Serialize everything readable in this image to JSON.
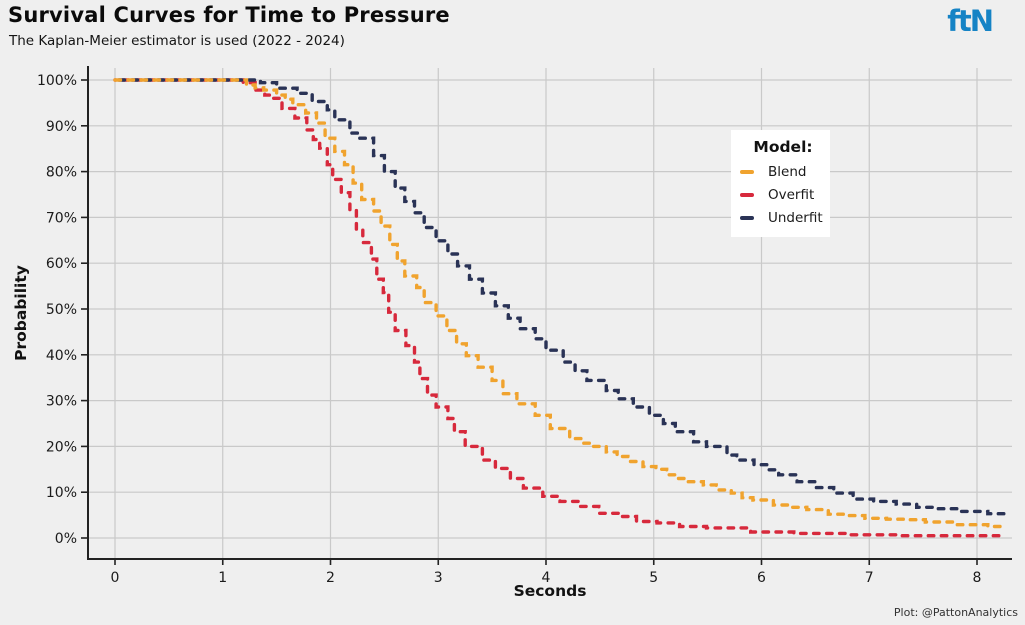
{
  "header": {
    "title": "Survival Curves for Time to Pressure",
    "subtitle": "The Kaplan-Meier estimator is used (2022 - 2024)",
    "logo": "ftN"
  },
  "caption": "Plot: @PattonAnalytics",
  "colors": {
    "background": "#efefef",
    "grid": "#c9c9c9",
    "axis": "#222222",
    "tick_label": "#1b1b1b",
    "legend_background": "#ffffff",
    "logo_blue": "#1583c5"
  },
  "chart_data": {
    "type": "line",
    "subtype": "kaplan-meier-step",
    "title": "Survival Curves for Time to Pressure",
    "subtitle": "The Kaplan-Meier estimator is used (2022 - 2024)",
    "xlabel": "Seconds",
    "ylabel": "Probability",
    "xlim": [
      -0.25,
      8.3
    ],
    "ylim": [
      0,
      100
    ],
    "grid": true,
    "dashed": true,
    "xticks": [
      0,
      1,
      2,
      3,
      4,
      5,
      6,
      7,
      8
    ],
    "yticks": [
      0,
      10,
      20,
      30,
      40,
      50,
      60,
      70,
      80,
      90,
      100
    ],
    "ytick_format": "percent",
    "legend": {
      "title": "Model:",
      "position": "inside-upper-right"
    },
    "series": [
      {
        "name": "Blend",
        "color": "#f0a32e",
        "points": [
          [
            0,
            100
          ],
          [
            1.22,
            98.9
          ],
          [
            1.3,
            98.3
          ],
          [
            1.38,
            97.8
          ],
          [
            1.5,
            96.7
          ],
          [
            1.58,
            95.8
          ],
          [
            1.65,
            94.6
          ],
          [
            1.77,
            92.8
          ],
          [
            1.87,
            90.6
          ],
          [
            1.95,
            87.3
          ],
          [
            2.04,
            84.4
          ],
          [
            2.13,
            81.5
          ],
          [
            2.21,
            77.5
          ],
          [
            2.29,
            73.9
          ],
          [
            2.4,
            71.4
          ],
          [
            2.47,
            68.1
          ],
          [
            2.55,
            64.1
          ],
          [
            2.62,
            60.5
          ],
          [
            2.69,
            57.2
          ],
          [
            2.8,
            54.7
          ],
          [
            2.87,
            51.4
          ],
          [
            2.98,
            48.5
          ],
          [
            3.08,
            45.3
          ],
          [
            3.17,
            42.4
          ],
          [
            3.26,
            39.8
          ],
          [
            3.37,
            37.3
          ],
          [
            3.5,
            34.4
          ],
          [
            3.6,
            31.5
          ],
          [
            3.73,
            29.3
          ],
          [
            3.9,
            26.8
          ],
          [
            4.04,
            23.9
          ],
          [
            4.22,
            21.7
          ],
          [
            4.35,
            20.7
          ],
          [
            4.44,
            20
          ],
          [
            4.56,
            18.8
          ],
          [
            4.66,
            17.8
          ],
          [
            4.76,
            16.7
          ],
          [
            4.9,
            15.6
          ],
          [
            5.02,
            15
          ],
          [
            5.12,
            13.8
          ],
          [
            5.21,
            13
          ],
          [
            5.32,
            12.3
          ],
          [
            5.46,
            11.6
          ],
          [
            5.58,
            10.5
          ],
          [
            5.72,
            9.8
          ],
          [
            5.82,
            8.8
          ],
          [
            5.92,
            8.3
          ],
          [
            6.11,
            7.2
          ],
          [
            6.28,
            6.7
          ],
          [
            6.42,
            6.2
          ],
          [
            6.62,
            5.2
          ],
          [
            6.76,
            4.9
          ],
          [
            6.96,
            4.3
          ],
          [
            7.16,
            4.1
          ],
          [
            7.32,
            4.0
          ],
          [
            7.52,
            3.5
          ],
          [
            7.8,
            2.9
          ],
          [
            8.1,
            2.5
          ],
          [
            8.25,
            2.5
          ]
        ]
      },
      {
        "name": "Overfit",
        "color": "#d7293c",
        "points": [
          [
            0,
            100
          ],
          [
            1.19,
            99.4
          ],
          [
            1.3,
            97.8
          ],
          [
            1.39,
            96.7
          ],
          [
            1.45,
            96
          ],
          [
            1.55,
            93.8
          ],
          [
            1.67,
            91.7
          ],
          [
            1.78,
            89.1
          ],
          [
            1.84,
            87
          ],
          [
            1.9,
            85.1
          ],
          [
            1.97,
            81.5
          ],
          [
            2.02,
            78.3
          ],
          [
            2.1,
            75.4
          ],
          [
            2.18,
            71.7
          ],
          [
            2.24,
            67.4
          ],
          [
            2.3,
            64.5
          ],
          [
            2.38,
            60.9
          ],
          [
            2.43,
            56.5
          ],
          [
            2.49,
            53.6
          ],
          [
            2.54,
            49.3
          ],
          [
            2.6,
            45.3
          ],
          [
            2.7,
            42
          ],
          [
            2.78,
            38.4
          ],
          [
            2.83,
            34.8
          ],
          [
            2.9,
            31.2
          ],
          [
            2.98,
            28.6
          ],
          [
            3.09,
            26.1
          ],
          [
            3.15,
            23.2
          ],
          [
            3.25,
            20
          ],
          [
            3.41,
            17
          ],
          [
            3.53,
            15.2
          ],
          [
            3.67,
            13
          ],
          [
            3.79,
            10.9
          ],
          [
            3.97,
            9.1
          ],
          [
            4.13,
            8
          ],
          [
            4.3,
            6.9
          ],
          [
            4.49,
            5.4
          ],
          [
            4.69,
            4.7
          ],
          [
            4.84,
            3.6
          ],
          [
            5.03,
            3.3
          ],
          [
            5.24,
            2.5
          ],
          [
            5.49,
            2.2
          ],
          [
            5.9,
            1.3
          ],
          [
            6.3,
            1.0
          ],
          [
            6.8,
            0.7
          ],
          [
            7.3,
            0.5
          ],
          [
            8.25,
            0.4
          ]
        ]
      },
      {
        "name": "Underfit",
        "color": "#2a3356",
        "points": [
          [
            0,
            100
          ],
          [
            1.35,
            99.4
          ],
          [
            1.5,
            98.2
          ],
          [
            1.69,
            97.1
          ],
          [
            1.83,
            95.3
          ],
          [
            1.97,
            93.5
          ],
          [
            2.04,
            91.3
          ],
          [
            2.18,
            88.4
          ],
          [
            2.27,
            87.3
          ],
          [
            2.4,
            83.5
          ],
          [
            2.5,
            80
          ],
          [
            2.6,
            76.4
          ],
          [
            2.69,
            73.5
          ],
          [
            2.78,
            71
          ],
          [
            2.87,
            67.8
          ],
          [
            2.98,
            64.9
          ],
          [
            3.09,
            62
          ],
          [
            3.18,
            59.4
          ],
          [
            3.29,
            56.5
          ],
          [
            3.41,
            53.5
          ],
          [
            3.53,
            50.7
          ],
          [
            3.65,
            48
          ],
          [
            3.76,
            45.7
          ],
          [
            3.9,
            43.5
          ],
          [
            4.0,
            41
          ],
          [
            4.16,
            38.4
          ],
          [
            4.27,
            36.5
          ],
          [
            4.38,
            34.4
          ],
          [
            4.56,
            32.2
          ],
          [
            4.67,
            30.4
          ],
          [
            4.81,
            28.6
          ],
          [
            4.96,
            26.8
          ],
          [
            5.09,
            25
          ],
          [
            5.2,
            23.2
          ],
          [
            5.37,
            21
          ],
          [
            5.49,
            20
          ],
          [
            5.68,
            18.1
          ],
          [
            5.77,
            17
          ],
          [
            5.93,
            16
          ],
          [
            6.05,
            14.9
          ],
          [
            6.16,
            13.8
          ],
          [
            6.33,
            12.3
          ],
          [
            6.5,
            11
          ],
          [
            6.67,
            9.8
          ],
          [
            6.85,
            8.5
          ],
          [
            7.04,
            8
          ],
          [
            7.25,
            7.4
          ],
          [
            7.44,
            6.7
          ],
          [
            7.63,
            6.4
          ],
          [
            7.83,
            5.8
          ],
          [
            8.1,
            5.3
          ],
          [
            8.25,
            5.3
          ]
        ]
      }
    ]
  }
}
